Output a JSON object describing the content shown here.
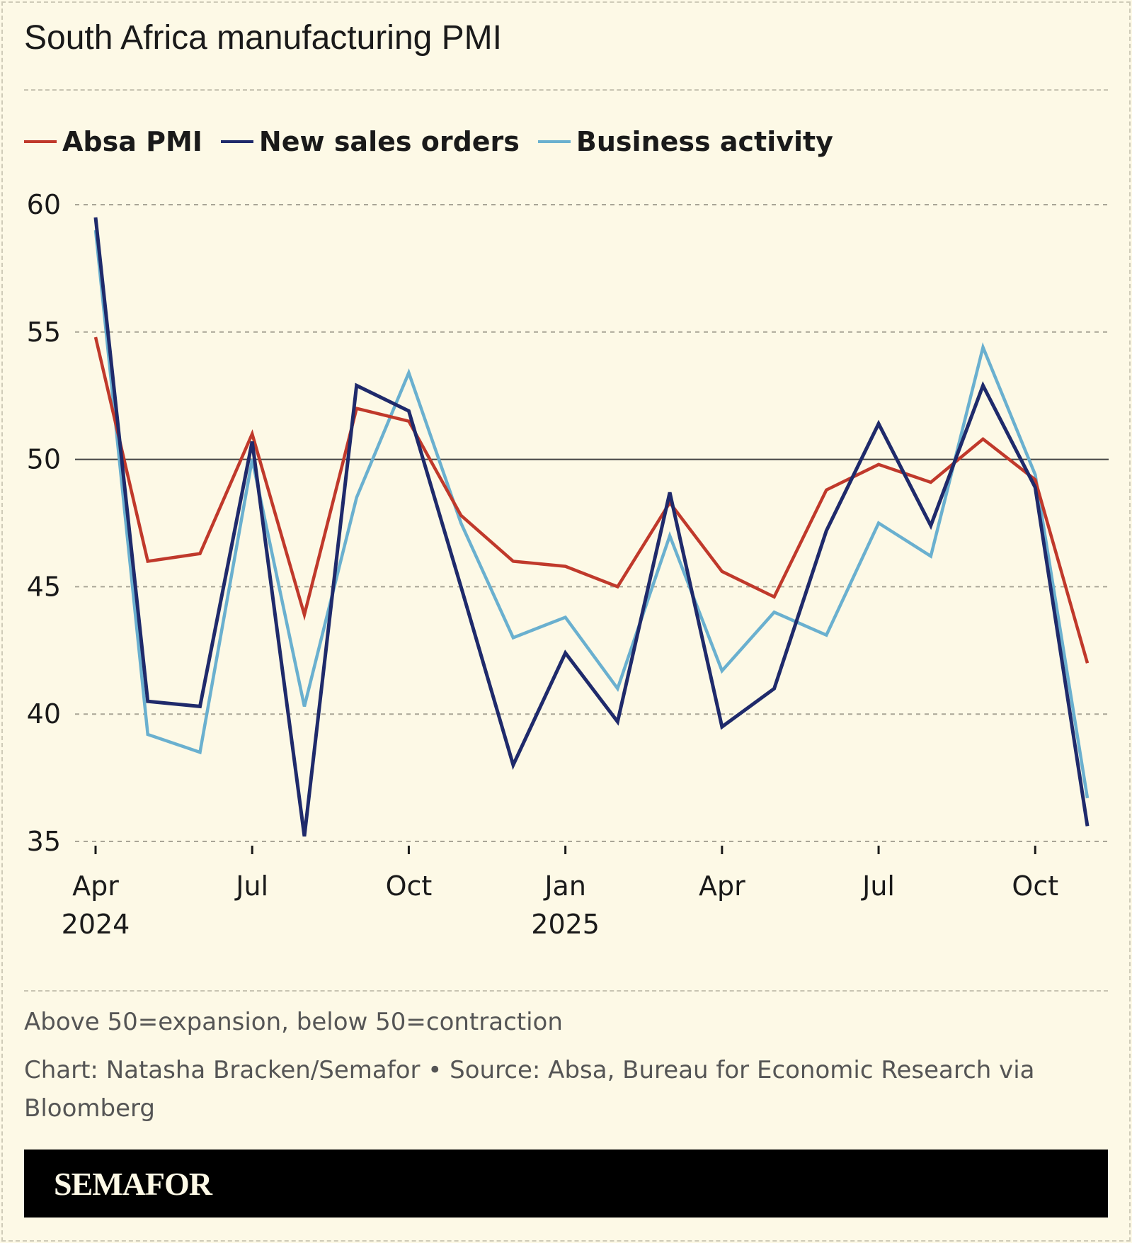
{
  "title": "South Africa manufacturing PMI",
  "chart_data": {
    "type": "line",
    "title": "South Africa manufacturing PMI",
    "x": [
      "2024-04",
      "2024-05",
      "2024-06",
      "2024-07",
      "2024-08",
      "2024-09",
      "2024-10",
      "2024-11",
      "2024-12",
      "2025-01",
      "2025-02",
      "2025-03",
      "2025-04",
      "2025-05",
      "2025-06",
      "2025-07",
      "2025-08",
      "2025-09",
      "2025-10",
      "2025-11"
    ],
    "x_ticks": [
      {
        "month": "2024-04",
        "label": "Apr",
        "sublabel": "2024"
      },
      {
        "month": "2024-07",
        "label": "Jul",
        "sublabel": ""
      },
      {
        "month": "2024-10",
        "label": "Oct",
        "sublabel": ""
      },
      {
        "month": "2025-01",
        "label": "Jan",
        "sublabel": "2025"
      },
      {
        "month": "2025-04",
        "label": "Apr",
        "sublabel": ""
      },
      {
        "month": "2025-07",
        "label": "Jul",
        "sublabel": ""
      },
      {
        "month": "2025-10",
        "label": "Oct",
        "sublabel": ""
      }
    ],
    "y_ticks": [
      "35",
      "40",
      "45",
      "50",
      "55",
      "60"
    ],
    "ylim": [
      35,
      60
    ],
    "reference_line": 50,
    "grid": true,
    "legend_position": "top-left",
    "series": [
      {
        "name": "Absa PMI",
        "color": "#c0392b",
        "values": [
          54.8,
          46.0,
          46.3,
          51.0,
          43.9,
          52.0,
          51.5,
          47.8,
          46.0,
          45.8,
          45.0,
          48.3,
          45.6,
          44.6,
          48.8,
          49.8,
          49.1,
          50.8,
          49.2,
          42.0
        ]
      },
      {
        "name": "New sales orders",
        "color": "#1f2a6b",
        "values": [
          59.5,
          40.5,
          40.3,
          50.7,
          35.2,
          52.9,
          51.9,
          45.0,
          38.0,
          42.4,
          39.7,
          48.7,
          39.5,
          41.0,
          47.2,
          51.4,
          47.4,
          52.9,
          48.9,
          35.6
        ]
      },
      {
        "name": "Business activity",
        "color": "#6ab0cf",
        "values": [
          59.0,
          39.2,
          38.5,
          50.0,
          40.3,
          48.5,
          53.4,
          47.5,
          43.0,
          43.8,
          41.0,
          47.0,
          41.7,
          44.0,
          43.1,
          47.5,
          46.2,
          54.4,
          49.4,
          36.7
        ]
      }
    ]
  },
  "notes": {
    "definition": "Above 50=expansion, below 50=contraction",
    "credit": "Chart: Natasha Bracken/Semafor • Source: Absa, Bureau for Economic Research via Bloomberg"
  },
  "brand": "SEMAFOR"
}
